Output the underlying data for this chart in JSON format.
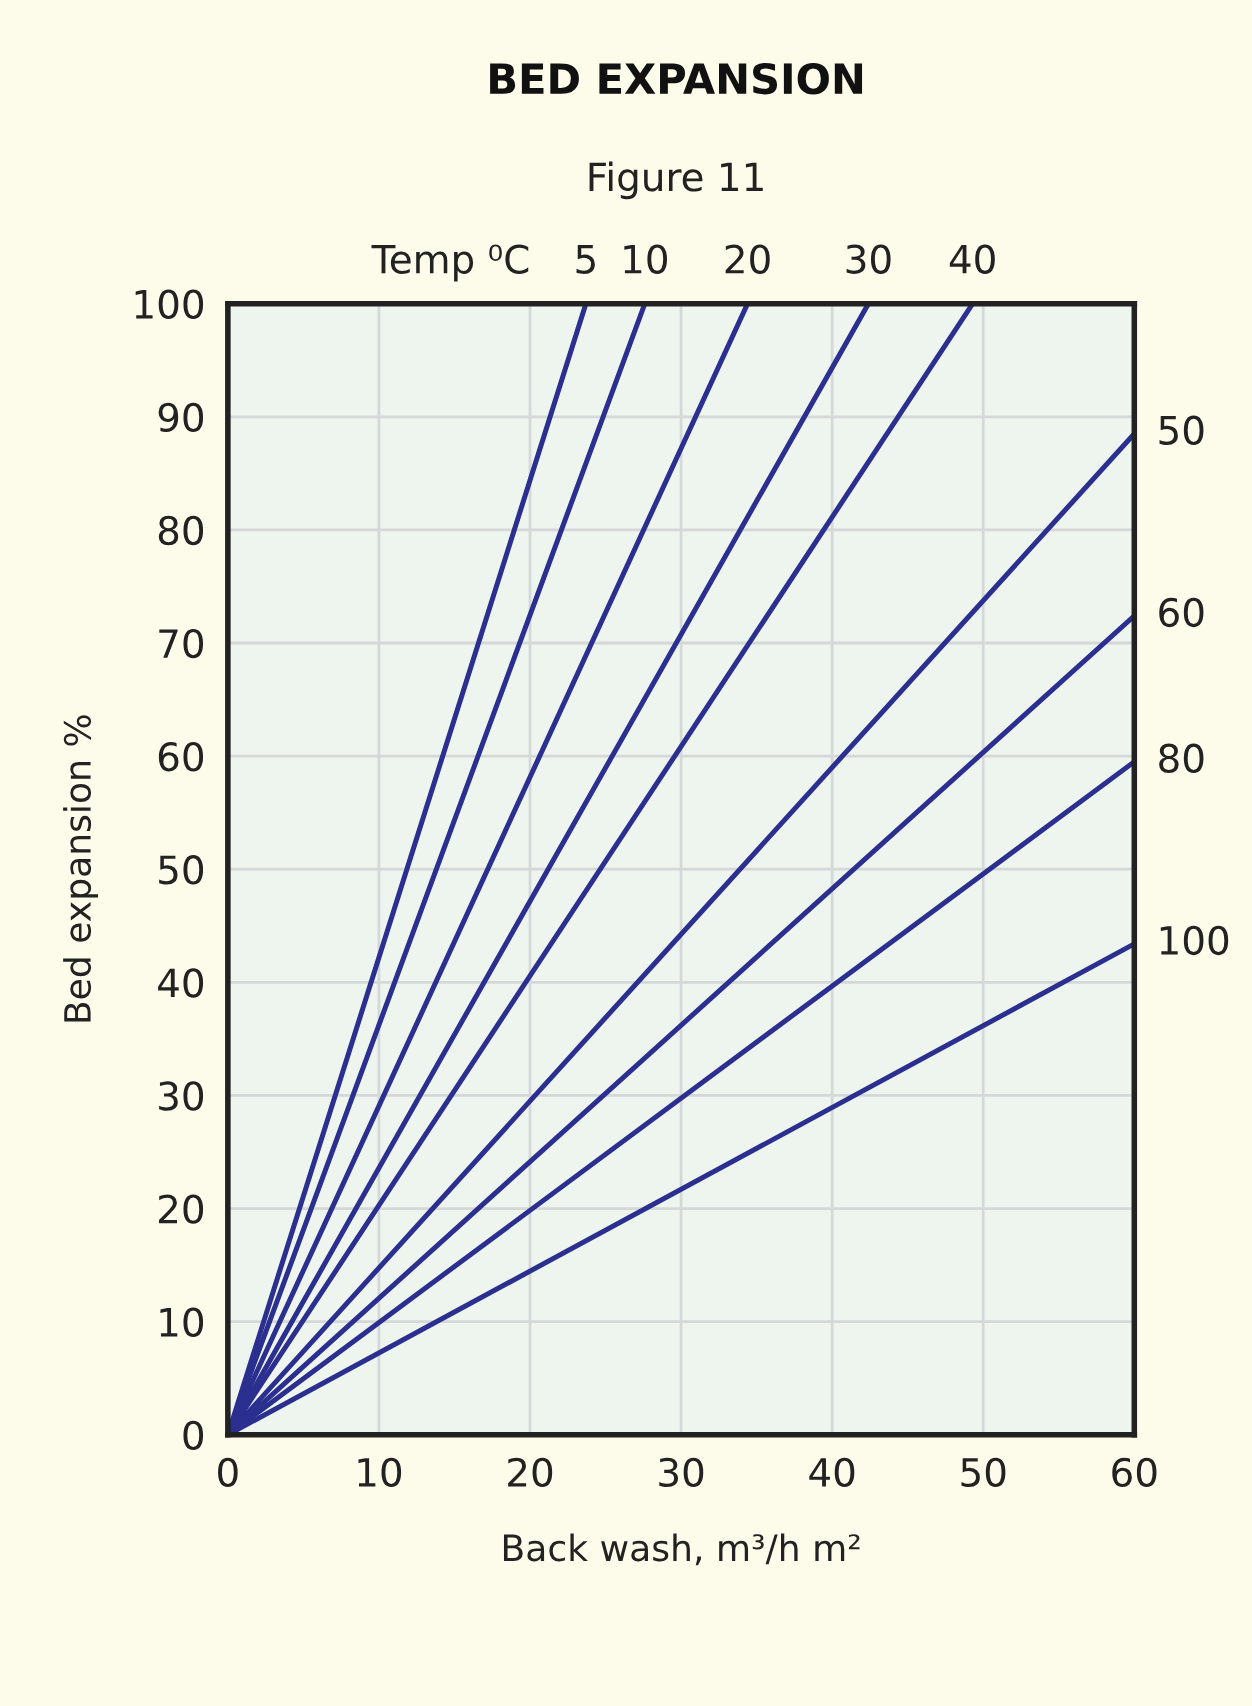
{
  "chart_data": {
    "type": "line",
    "title": "BED EXPANSION",
    "subtitle": "Figure 11",
    "xlabel": "Back wash, m³/h m²",
    "ylabel": "Bed expansion %",
    "legend_title": "Temp ⁰C",
    "series": [
      {
        "name": "5",
        "color": "#2b2f8f",
        "x": [
          0,
          23.7
        ],
        "values": [
          0,
          100
        ]
      },
      {
        "name": "10",
        "color": "#2b2f8f",
        "x": [
          0,
          27.6
        ],
        "values": [
          0,
          100
        ]
      },
      {
        "name": "20",
        "color": "#2b2f8f",
        "x": [
          0,
          34.4
        ],
        "values": [
          0,
          100
        ]
      },
      {
        "name": "30",
        "color": "#2b2f8f",
        "x": [
          0,
          42.4
        ],
        "values": [
          0,
          100
        ]
      },
      {
        "name": "40",
        "color": "#2b2f8f",
        "x": [
          0,
          49.3
        ],
        "values": [
          0,
          100
        ]
      },
      {
        "name": "50",
        "color": "#2b2f8f",
        "x": [
          0,
          60
        ],
        "values": [
          0,
          88.5
        ]
      },
      {
        "name": "60",
        "color": "#2b2f8f",
        "x": [
          0,
          60
        ],
        "values": [
          0,
          72.4
        ]
      },
      {
        "name": "80",
        "color": "#2b2f8f",
        "x": [
          0,
          60
        ],
        "values": [
          0,
          59.5
        ]
      },
      {
        "name": "100",
        "color": "#2b2f8f",
        "x": [
          0,
          60
        ],
        "values": [
          0,
          43.4
        ]
      }
    ],
    "xlim": [
      0,
      60
    ],
    "xticks": [
      0,
      10,
      20,
      30,
      40,
      50,
      60
    ],
    "ylim": [
      0,
      100
    ],
    "yticks": [
      0,
      10,
      20,
      30,
      40,
      50,
      60,
      70,
      80,
      90,
      100
    ],
    "grid": true,
    "legend": false,
    "marker": "none",
    "line_style": "solid"
  }
}
